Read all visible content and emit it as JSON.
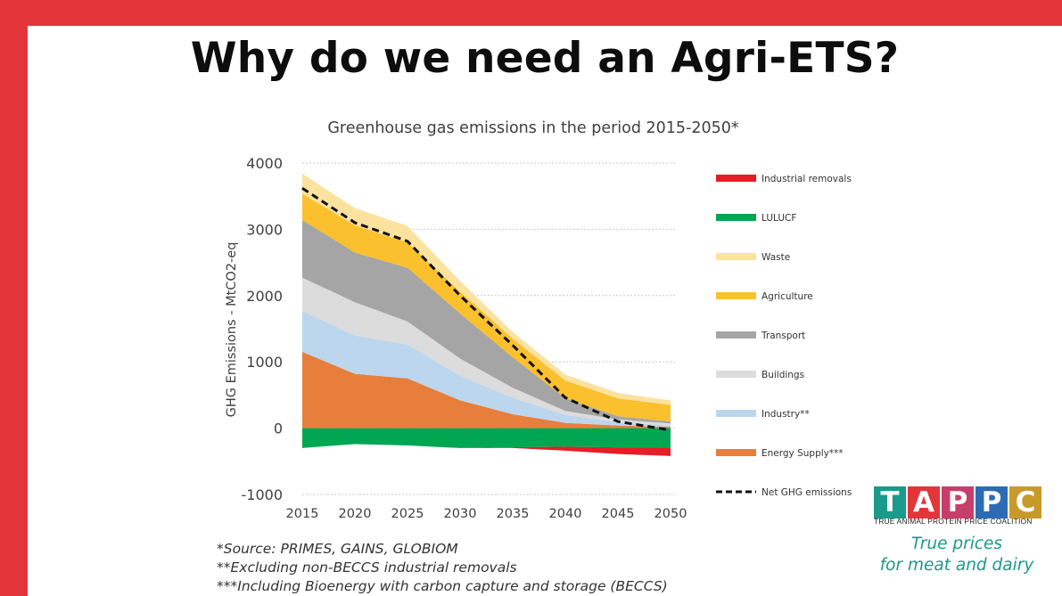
{
  "slide": {
    "title": "Why do we need an Agri-ETS?",
    "frame_color": "#e3353a"
  },
  "chart_data": {
    "type": "area",
    "title": "Greenhouse gas emissions in the period 2015-2050*",
    "xlabel": "",
    "ylabel": "GHG Emissions - MtCO2-eq",
    "x": [
      2015,
      2020,
      2025,
      2030,
      2035,
      2040,
      2045,
      2050
    ],
    "x_ticks": [
      "2015",
      "2020",
      "2025",
      "2030",
      "2035",
      "2040",
      "2045",
      "2050"
    ],
    "y_ticks": [
      "4000",
      "3000",
      "2000",
      "1000",
      "0",
      "-1000"
    ],
    "ylim": [
      -1000,
      4000
    ],
    "grid": true,
    "legend_position": "right",
    "stacked_positive": [
      {
        "name": "Energy Supply***",
        "color": "#e87e3b",
        "values": [
          1150,
          820,
          750,
          420,
          210,
          80,
          40,
          20
        ]
      },
      {
        "name": "Industry**",
        "color": "#bcd6ee",
        "values": [
          620,
          580,
          510,
          370,
          250,
          120,
          50,
          20
        ]
      },
      {
        "name": "Buildings",
        "color": "#dcdcdc",
        "values": [
          500,
          500,
          350,
          260,
          150,
          60,
          40,
          30
        ]
      },
      {
        "name": "Transport",
        "color": "#a5a5a5",
        "values": [
          870,
          750,
          810,
          680,
          460,
          190,
          50,
          30
        ]
      },
      {
        "name": "Agriculture",
        "color": "#fbc02d",
        "values": [
          400,
          410,
          380,
          330,
          280,
          270,
          270,
          250
        ]
      },
      {
        "name": "Waste",
        "color": "#fbe29f",
        "values": [
          300,
          260,
          250,
          160,
          100,
          90,
          80,
          70
        ]
      }
    ],
    "stacked_negative": [
      {
        "name": "LULUCF",
        "color": "#00a651",
        "values": [
          -300,
          -240,
          -260,
          -300,
          -290,
          -280,
          -290,
          -290
        ]
      },
      {
        "name": "Industrial removals",
        "color": "#e41e26",
        "values": [
          0,
          0,
          0,
          0,
          -10,
          -60,
          -100,
          -130
        ]
      }
    ],
    "net_line": {
      "name": "Net GHG emissions",
      "color": "#111111",
      "values": [
        3620,
        3100,
        2820,
        2000,
        1250,
        460,
        100,
        -30
      ]
    },
    "legend": [
      {
        "name": "Industrial removals",
        "color": "#e41e26",
        "kind": "bar"
      },
      {
        "name": "LULUCF",
        "color": "#00a651",
        "kind": "bar"
      },
      {
        "name": "Waste",
        "color": "#fbe29f",
        "kind": "bar"
      },
      {
        "name": "Agriculture",
        "color": "#fbc02d",
        "kind": "bar"
      },
      {
        "name": "Transport",
        "color": "#a5a5a5",
        "kind": "bar"
      },
      {
        "name": "Buildings",
        "color": "#dcdcdc",
        "kind": "bar"
      },
      {
        "name": "Industry**",
        "color": "#bcd6ee",
        "kind": "bar"
      },
      {
        "name": "Energy Supply***",
        "color": "#e87e3b",
        "kind": "bar"
      },
      {
        "name": "Net GHG emissions",
        "color": "#111111",
        "kind": "dash"
      }
    ]
  },
  "sources": [
    "*Source: PRIMES, GAINS, GLOBIOM",
    "**Excluding non-BECCS industrial removals",
    "***Including Bioenergy with carbon capture and storage (BECCS)"
  ],
  "logo": {
    "letters": [
      {
        "char": "T",
        "color": "#1a9a8a"
      },
      {
        "char": "A",
        "color": "#e3353a"
      },
      {
        "char": "P",
        "color": "#c83e6a"
      },
      {
        "char": "P",
        "color": "#2d6cb5"
      },
      {
        "char": "C",
        "color": "#c79a2a"
      }
    ],
    "subtitle": "TRUE ANIMAL PROTEIN PRICE COALITION",
    "tagline_1": "True prices",
    "tagline_2": "for meat and dairy"
  }
}
